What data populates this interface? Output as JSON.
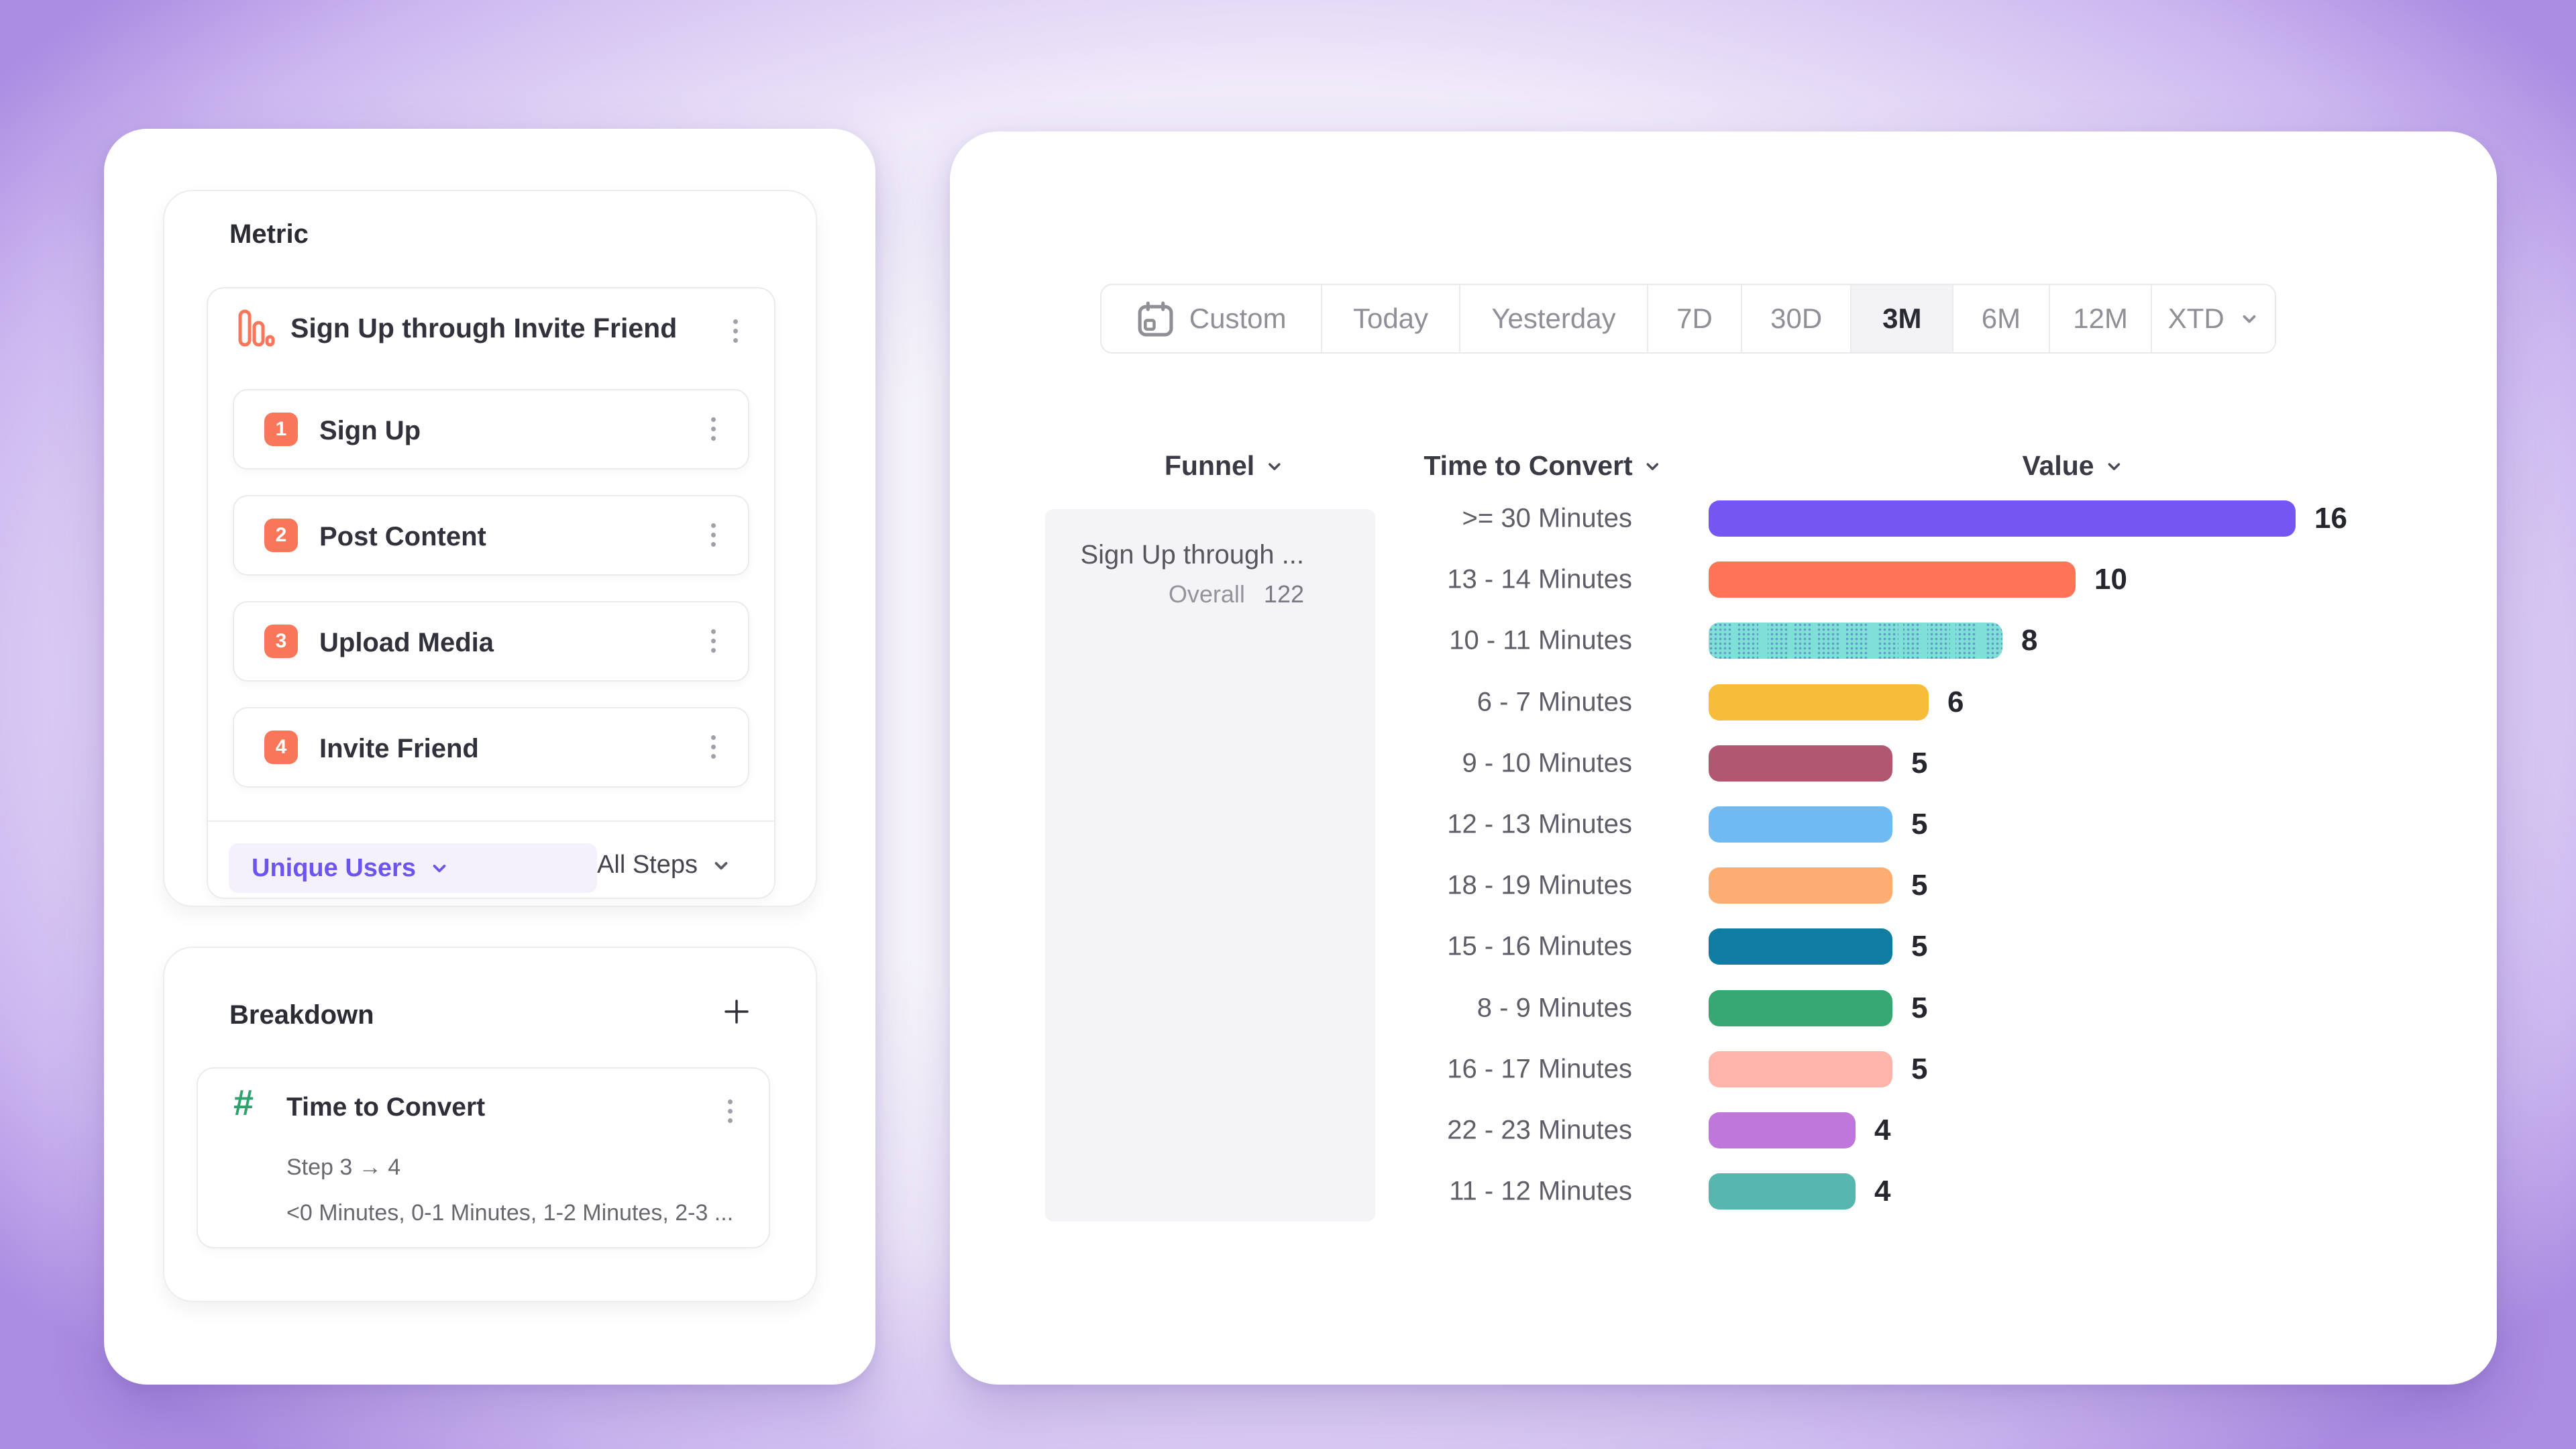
{
  "metric_panel": {
    "title": "Metric",
    "funnel_header": {
      "icon": "funnel-bars-icon",
      "label": "Sign Up through Invite Friend"
    },
    "steps": [
      {
        "num": "1",
        "label": "Sign Up"
      },
      {
        "num": "2",
        "label": "Post Content"
      },
      {
        "num": "3",
        "label": "Upload Media"
      },
      {
        "num": "4",
        "label": "Invite Friend"
      }
    ],
    "measure_dropdown": "Unique Users",
    "steps_dropdown": "All Steps",
    "accent_color": "#6C55EE",
    "badge_color": "#F8775A"
  },
  "breakdown_panel": {
    "title": "Breakdown",
    "add_icon": "plus-icon",
    "item": {
      "icon": "hash-icon",
      "icon_glyph": "#",
      "icon_color": "#2EA36E",
      "title": "Time to Convert",
      "step_range": "Step 3 → 4",
      "values_preview": "<0 Minutes, 0-1 Minutes, 1-2 Minutes, 2-3 ..."
    }
  },
  "toolbar": {
    "tabs": [
      "Custom",
      "Today",
      "Yesterday",
      "7D",
      "30D",
      "3M",
      "6M",
      "12M",
      "XTD"
    ],
    "selected": "3M",
    "custom_has_calendar_icon": true,
    "xtd_has_chevron": true
  },
  "table": {
    "headers": {
      "funnel": "Funnel",
      "time_to_convert": "Time to Convert",
      "value": "Value"
    },
    "funnel_cell": {
      "title": "Sign Up through ...",
      "overall_label": "Overall",
      "overall_value": "122"
    },
    "rows": [
      {
        "label": ">= 30 Minutes",
        "value": 16,
        "color": "#7656F3",
        "pattern": "solid"
      },
      {
        "label": "13 - 14 Minutes",
        "value": 10,
        "color": "#FF7357",
        "pattern": "solid"
      },
      {
        "label": "10 - 11 Minutes",
        "value": 8,
        "color": "#7EE0D6",
        "pattern": "hatched",
        "pattern_color": "#5E93C4"
      },
      {
        "label": "6 - 7 Minutes",
        "value": 6,
        "color": "#F7BC3A",
        "pattern": "solid"
      },
      {
        "label": "9 - 10 Minutes",
        "value": 5,
        "color": "#B05870",
        "pattern": "solid"
      },
      {
        "label": "12 - 13 Minutes",
        "value": 5,
        "color": "#70BAF3",
        "pattern": "solid"
      },
      {
        "label": "18 - 19 Minutes",
        "value": 5,
        "color": "#FDAD72",
        "pattern": "solid"
      },
      {
        "label": "15 - 16 Minutes",
        "value": 5,
        "color": "#0F7CA1",
        "pattern": "solid"
      },
      {
        "label": "8 - 9 Minutes",
        "value": 5,
        "color": "#38A873",
        "pattern": "solid"
      },
      {
        "label": "16 - 17 Minutes",
        "value": 5,
        "color": "#FFB5AB",
        "pattern": "solid"
      },
      {
        "label": "22 - 23 Minutes",
        "value": 4,
        "color": "#BF77DC",
        "pattern": "solid"
      },
      {
        "label": "11 - 12 Minutes",
        "value": 4,
        "color": "#57B6AD",
        "pattern": "solid"
      }
    ]
  },
  "chart_data": {
    "type": "bar",
    "orientation": "horizontal",
    "title": "Time to Convert breakdown (Value)",
    "categories": [
      ">= 30 Minutes",
      "13 - 14 Minutes",
      "10 - 11 Minutes",
      "6 - 7 Minutes",
      "9 - 10 Minutes",
      "12 - 13 Minutes",
      "18 - 19 Minutes",
      "15 - 16 Minutes",
      "8 - 9 Minutes",
      "16 - 17 Minutes",
      "22 - 23 Minutes",
      "11 - 12 Minutes"
    ],
    "values": [
      16,
      10,
      8,
      6,
      5,
      5,
      5,
      5,
      5,
      5,
      4,
      4
    ],
    "xlim": [
      0,
      16
    ],
    "overall": 122,
    "legend_position": "none",
    "grid": false
  }
}
